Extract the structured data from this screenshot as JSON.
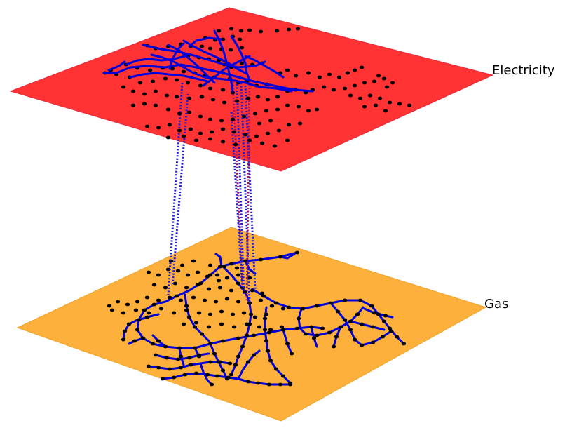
{
  "layers": [
    {
      "label": "Electricity",
      "color": "#ff3333",
      "edge_color": "#e8283a"
    },
    {
      "label": "Gas",
      "color": "#fdb03c",
      "edge_color": "#f0a22a"
    }
  ],
  "colors": {
    "node": "#000000",
    "edge": "#0000dd",
    "interlink_blue": "#1a1ad8",
    "interlink_purple": "#a0106a"
  }
}
